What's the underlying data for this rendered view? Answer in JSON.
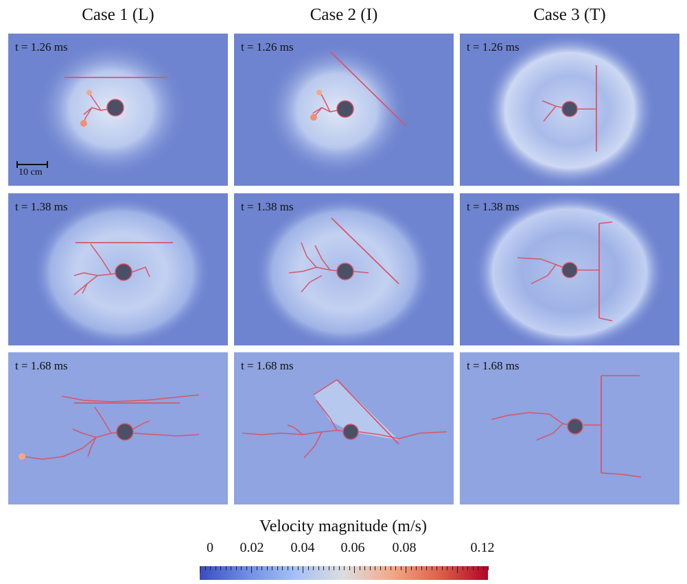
{
  "columns": [
    "Case 1 (L)",
    "Case 2 (I)",
    "Case 3 (T)"
  ],
  "rows": [
    {
      "time": "t = 1.26 ms"
    },
    {
      "time": "t = 1.38 ms"
    },
    {
      "time": "t = 1.68 ms"
    }
  ],
  "scale_bar": "10 cm",
  "colorbar": {
    "title": "Velocity magnitude (m/s)",
    "ticks": [
      "0",
      "0.02",
      "0.04",
      "0.06",
      "0.08",
      "0.12"
    ],
    "colormap": [
      "#3b4cc0",
      "#6f8ee6",
      "#a6c1f5",
      "#dcdde0",
      "#f3a889",
      "#dc5f4b",
      "#b40426"
    ]
  },
  "colors": {
    "background_field": "#6f84d0",
    "crack": "#d9546a",
    "borehole": "#4a5066"
  }
}
